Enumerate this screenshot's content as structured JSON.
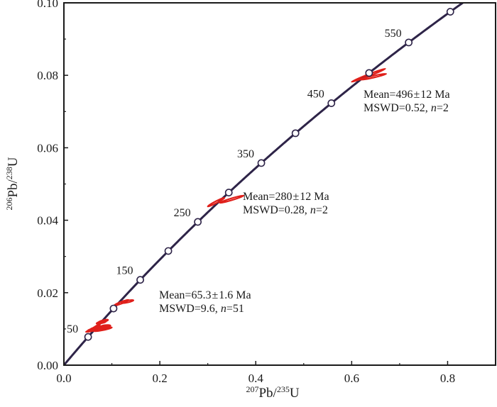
{
  "chart_data": {
    "type": "scatter",
    "title": "",
    "xlabel": {
      "pre_sup": "207",
      "main": "Pb/",
      "post_sup": "235",
      "tail": "U"
    },
    "ylabel": {
      "pre_sup": "206",
      "main": "Pb/",
      "post_sup": "238",
      "tail": "U"
    },
    "xlim": [
      0.0,
      0.9
    ],
    "ylim": [
      0.0,
      0.1
    ],
    "xticks": [
      "0.0",
      "0.2",
      "0.4",
      "0.6",
      "0.8"
    ],
    "yticks": [
      "0.00",
      "0.02",
      "0.04",
      "0.06",
      "0.08",
      "0.10"
    ],
    "xtick_values": [
      0.0,
      0.2,
      0.4,
      0.6,
      0.8
    ],
    "ytick_values": [
      0.0,
      0.02,
      0.04,
      0.06,
      0.08,
      0.1
    ],
    "grid": false,
    "concordia": {
      "color": "#2e2448",
      "marker_ages_ma": [
        50,
        100,
        150,
        200,
        250,
        300,
        350,
        400,
        450,
        500,
        550,
        600
      ],
      "age_labels": [
        "50",
        "150",
        "250",
        "350",
        "450",
        "550"
      ]
    },
    "data_ellipses": {
      "color": "#e0201b",
      "groups": [
        {
          "points": [
            {
              "x": 0.046,
              "y": 0.0092,
              "x2": 0.082,
              "y2": 0.0105
            },
            {
              "x": 0.05,
              "y": 0.0096,
              "x2": 0.088,
              "y2": 0.0106
            },
            {
              "x": 0.055,
              "y": 0.0099,
              "x2": 0.085,
              "y2": 0.0108
            },
            {
              "x": 0.06,
              "y": 0.0101,
              "x2": 0.09,
              "y2": 0.0102
            },
            {
              "x": 0.058,
              "y": 0.0098,
              "x2": 0.075,
              "y2": 0.0112
            },
            {
              "x": 0.065,
              "y": 0.0103,
              "x2": 0.095,
              "y2": 0.0106
            },
            {
              "x": 0.068,
              "y": 0.0115,
              "x2": 0.088,
              "y2": 0.0121
            },
            {
              "x": 0.072,
              "y": 0.0118,
              "x2": 0.092,
              "y2": 0.0125
            },
            {
              "x": 0.062,
              "y": 0.0094,
              "x2": 0.1,
              "y2": 0.0104
            },
            {
              "x": 0.078,
              "y": 0.0107,
              "x2": 0.097,
              "y2": 0.0109
            },
            {
              "x": 0.105,
              "y": 0.0165,
              "x2": 0.135,
              "y2": 0.018
            },
            {
              "x": 0.12,
              "y": 0.0172,
              "x2": 0.145,
              "y2": 0.0179
            }
          ]
        },
        {
          "points": [
            {
              "x": 0.3,
              "y": 0.0438,
              "x2": 0.335,
              "y2": 0.0462
            },
            {
              "x": 0.325,
              "y": 0.0448,
              "x2": 0.375,
              "y2": 0.0468
            }
          ]
        },
        {
          "points": [
            {
              "x": 0.6,
              "y": 0.0782,
              "x2": 0.67,
              "y2": 0.0818
            },
            {
              "x": 0.618,
              "y": 0.0788,
              "x2": 0.672,
              "y2": 0.0804
            }
          ]
        }
      ]
    },
    "annotations": [
      {
        "line1_lead": "Mean=65.3",
        "line1_pm": "±",
        "line1_tail": "1.6 Ma",
        "line2_lead": "MSWD=9.6, ",
        "line2_n": "n",
        "line2_tail": "=51"
      },
      {
        "line1_lead": "Mean=280",
        "line1_pm": "±",
        "line1_tail": "12 Ma",
        "line2_lead": "MSWD=0.28, ",
        "line2_n": "n",
        "line2_tail": "=2"
      },
      {
        "line1_lead": "Mean=496",
        "line1_pm": "±",
        "line1_tail": "12 Ma",
        "line2_lead": "MSWD=0.52, ",
        "line2_n": "n",
        "line2_tail": "=2"
      }
    ]
  }
}
